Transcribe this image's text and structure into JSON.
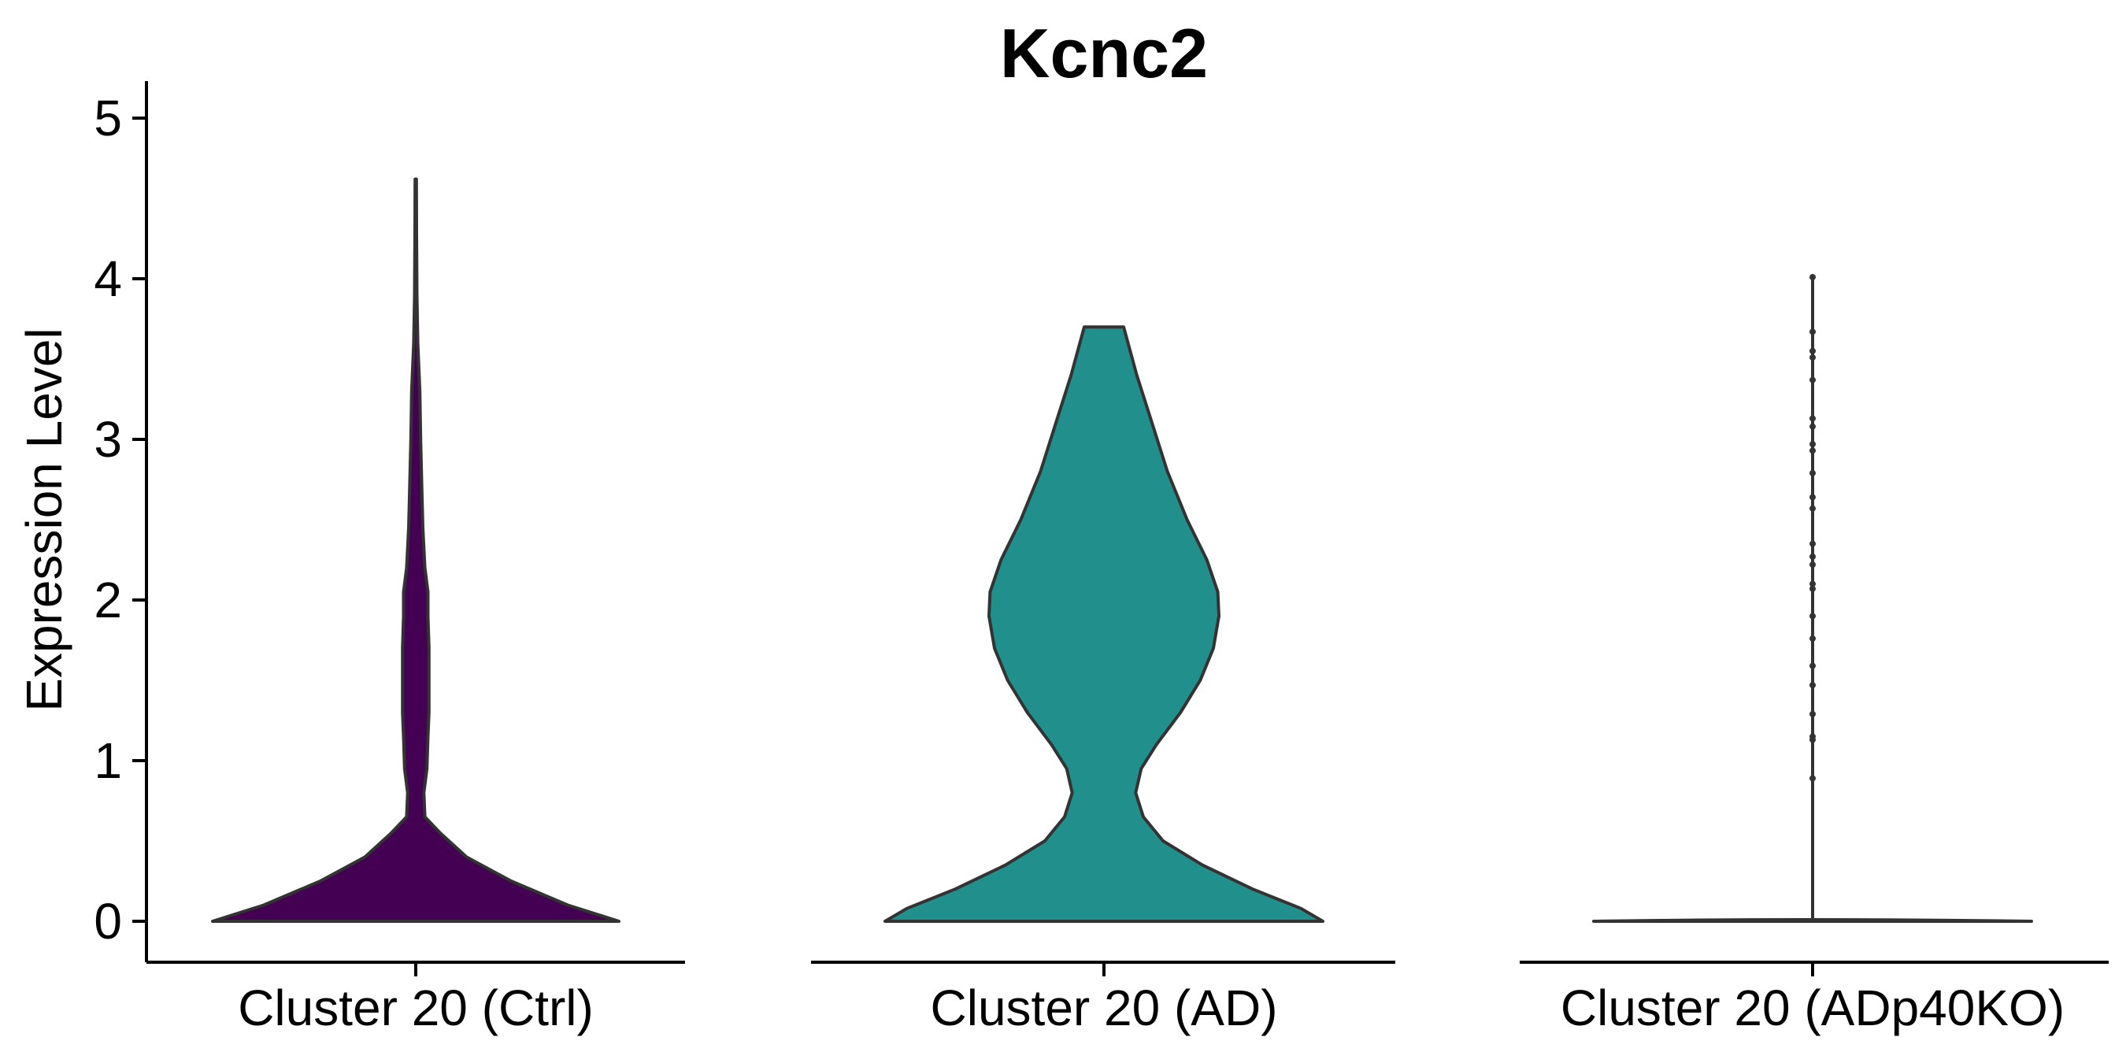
{
  "chart_data": {
    "type": "violin",
    "title": "Kcnc2",
    "ylabel": "Expression Level",
    "xlabel": "",
    "ylim": [
      -0.25,
      5.25
    ],
    "yticks": [
      "0",
      "1",
      "2",
      "3",
      "4",
      "5"
    ],
    "grid": false,
    "legend": "none",
    "categories": [
      "Cluster 20 (Ctrl)",
      "Cluster 20 (AD)",
      "Cluster 20 (ADp40KO)"
    ],
    "series": [
      {
        "category": "Cluster 20 (Ctrl)",
        "color": "#440154",
        "max": 4.62,
        "density_profile": [
          [
            0.0,
            1.0
          ],
          [
            0.1,
            0.75
          ],
          [
            0.25,
            0.47
          ],
          [
            0.4,
            0.25
          ],
          [
            0.55,
            0.12
          ],
          [
            0.65,
            0.045
          ],
          [
            0.8,
            0.04
          ],
          [
            0.95,
            0.055
          ],
          [
            1.15,
            0.06
          ],
          [
            1.3,
            0.065
          ],
          [
            1.5,
            0.065
          ],
          [
            1.7,
            0.065
          ],
          [
            1.9,
            0.06
          ],
          [
            2.05,
            0.06
          ],
          [
            2.2,
            0.045
          ],
          [
            2.45,
            0.035
          ],
          [
            2.7,
            0.03
          ],
          [
            3.0,
            0.024
          ],
          [
            3.3,
            0.02
          ],
          [
            3.6,
            0.01
          ],
          [
            3.9,
            0.006
          ],
          [
            4.3,
            0.004
          ],
          [
            4.62,
            0.003
          ]
        ]
      },
      {
        "category": "Cluster 20 (AD)",
        "color": "#21908C",
        "max": 3.7,
        "density_profile": [
          [
            0.0,
            1.0
          ],
          [
            0.08,
            0.9
          ],
          [
            0.2,
            0.68
          ],
          [
            0.35,
            0.45
          ],
          [
            0.5,
            0.27
          ],
          [
            0.65,
            0.18
          ],
          [
            0.8,
            0.145
          ],
          [
            0.95,
            0.17
          ],
          [
            1.1,
            0.24
          ],
          [
            1.3,
            0.35
          ],
          [
            1.5,
            0.44
          ],
          [
            1.7,
            0.5
          ],
          [
            1.9,
            0.525
          ],
          [
            2.05,
            0.52
          ],
          [
            2.25,
            0.47
          ],
          [
            2.5,
            0.38
          ],
          [
            2.8,
            0.29
          ],
          [
            3.1,
            0.22
          ],
          [
            3.4,
            0.15
          ],
          [
            3.7,
            0.09
          ]
        ]
      },
      {
        "category": "Cluster 20 (ADp40KO)",
        "color": "#FDE725",
        "max": 4.01,
        "density_profile": [
          [
            0.0,
            1.0
          ],
          [
            0.02,
            0.0
          ]
        ],
        "points": [
          0.89,
          1.13,
          1.15,
          1.29,
          1.47,
          1.59,
          1.76,
          1.9,
          2.07,
          2.1,
          2.22,
          2.27,
          2.35,
          2.57,
          2.64,
          2.79,
          2.93,
          2.97,
          3.08,
          3.13,
          3.37,
          3.51,
          3.55,
          3.67,
          4.01
        ]
      }
    ]
  }
}
